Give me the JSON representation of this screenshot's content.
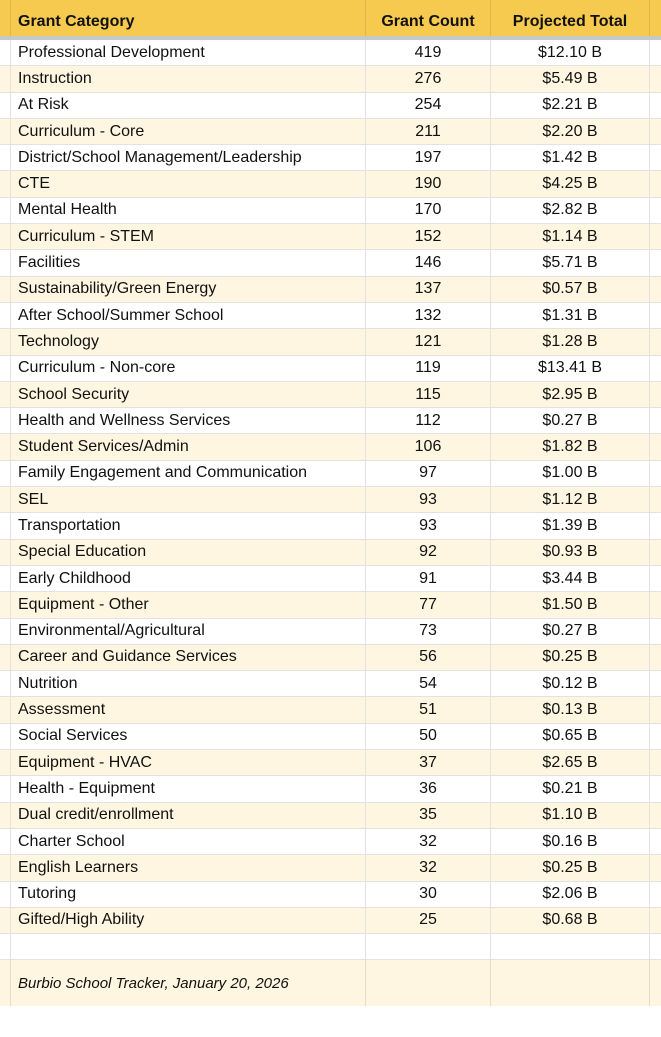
{
  "header": {
    "category": "Grant Category",
    "count": "Grant Count",
    "total": "Projected Total"
  },
  "colors": {
    "header": "#f6ca4f",
    "alt_row": "#fef6e0"
  },
  "rows": [
    {
      "category": "Professional Development",
      "count": "419",
      "total": "$12.10 B"
    },
    {
      "category": "Instruction",
      "count": "276",
      "total": "$5.49 B"
    },
    {
      "category": "At Risk",
      "count": "254",
      "total": "$2.21 B"
    },
    {
      "category": "Curriculum - Core",
      "count": "211",
      "total": "$2.20 B"
    },
    {
      "category": "District/School Management/Leadership",
      "count": "197",
      "total": "$1.42 B"
    },
    {
      "category": "CTE",
      "count": "190",
      "total": "$4.25 B"
    },
    {
      "category": "Mental Health",
      "count": "170",
      "total": "$2.82 B"
    },
    {
      "category": "Curriculum - STEM",
      "count": "152",
      "total": "$1.14 B"
    },
    {
      "category": "Facilities",
      "count": "146",
      "total": "$5.71 B"
    },
    {
      "category": "Sustainability/Green Energy",
      "count": "137",
      "total": "$0.57 B"
    },
    {
      "category": "After School/Summer School",
      "count": "132",
      "total": "$1.31 B"
    },
    {
      "category": "Technology",
      "count": "121",
      "total": "$1.28 B"
    },
    {
      "category": "Curriculum - Non-core",
      "count": "119",
      "total": "$13.41 B"
    },
    {
      "category": "School Security",
      "count": "115",
      "total": "$2.95 B"
    },
    {
      "category": "Health and Wellness Services",
      "count": "112",
      "total": "$0.27 B"
    },
    {
      "category": "Student Services/Admin",
      "count": "106",
      "total": "$1.82 B"
    },
    {
      "category": "Family Engagement and Communication",
      "count": "97",
      "total": "$1.00 B"
    },
    {
      "category": "SEL",
      "count": "93",
      "total": "$1.12 B"
    },
    {
      "category": "Transportation",
      "count": "93",
      "total": "$1.39 B"
    },
    {
      "category": "Special Education",
      "count": "92",
      "total": "$0.93 B"
    },
    {
      "category": "Early Childhood",
      "count": "91",
      "total": "$3.44 B"
    },
    {
      "category": "Equipment - Other",
      "count": "77",
      "total": "$1.50 B"
    },
    {
      "category": "Environmental/Agricultural",
      "count": "73",
      "total": "$0.27 B"
    },
    {
      "category": "Career and Guidance Services",
      "count": "56",
      "total": "$0.25 B"
    },
    {
      "category": "Nutrition",
      "count": "54",
      "total": "$0.12 B"
    },
    {
      "category": "Assessment",
      "count": "51",
      "total": "$0.13 B"
    },
    {
      "category": "Social Services",
      "count": "50",
      "total": "$0.65 B"
    },
    {
      "category": "Equipment - HVAC",
      "count": "37",
      "total": "$2.65 B"
    },
    {
      "category": "Health - Equipment",
      "count": "36",
      "total": "$0.21 B"
    },
    {
      "category": "Dual credit/enrollment",
      "count": "35",
      "total": "$1.10 B"
    },
    {
      "category": "Charter School",
      "count": "32",
      "total": "$0.16 B"
    },
    {
      "category": "English Learners",
      "count": "32",
      "total": "$0.25 B"
    },
    {
      "category": "Tutoring",
      "count": "30",
      "total": "$2.06 B"
    },
    {
      "category": "Gifted/High Ability",
      "count": "25",
      "total": "$0.68 B"
    }
  ],
  "footer": {
    "source": "Burbio School Tracker, January 20, 2026"
  }
}
